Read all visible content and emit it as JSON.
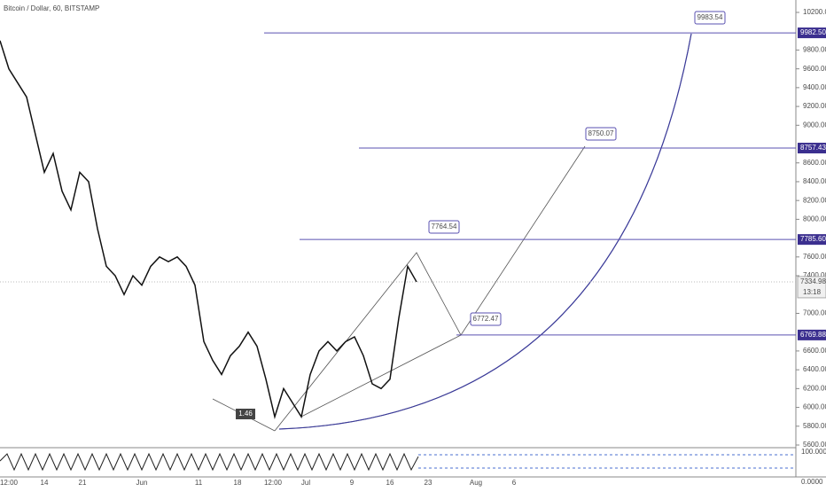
{
  "header": {
    "title": "Bitcoin / Dollar, 60, BITSTAMP"
  },
  "price_axis": {
    "ylim": [
      5600,
      10200
    ],
    "ticks": [
      {
        "value": 10200,
        "label": "10200.00"
      },
      {
        "value": 9800,
        "label": "9800.00"
      },
      {
        "value": 9600,
        "label": "9600.00"
      },
      {
        "value": 9400,
        "label": "9400.00"
      },
      {
        "value": 9200,
        "label": "9200.00"
      },
      {
        "value": 9000,
        "label": "9000.00"
      },
      {
        "value": 8600,
        "label": "8600.00"
      },
      {
        "value": 8400,
        "label": "8400.00"
      },
      {
        "value": 8200,
        "label": "8200.00"
      },
      {
        "value": 8000,
        "label": "8000.00"
      },
      {
        "value": 7600,
        "label": "7600.00"
      },
      {
        "value": 7400,
        "label": "7400.00"
      },
      {
        "value": 7000,
        "label": "7000.00"
      },
      {
        "value": 6600,
        "label": "6600.00"
      },
      {
        "value": 6400,
        "label": "6400.00"
      },
      {
        "value": 6200,
        "label": "6200.00"
      },
      {
        "value": 6000,
        "label": "6000.00"
      },
      {
        "value": 5800,
        "label": "5800.00"
      },
      {
        "value": 5600,
        "label": "5600.00"
      }
    ]
  },
  "levels": [
    {
      "value": 9982.5,
      "label": "9982.50"
    },
    {
      "value": 8757.43,
      "label": "8757.43"
    },
    {
      "value": 7785.6,
      "label": "7785.60"
    },
    {
      "value": 6769.88,
      "label": "6769.88"
    }
  ],
  "current": {
    "value": 7334.98,
    "label": "7334.98",
    "timer": "13:18"
  },
  "callouts": [
    "9983.54",
    "8750.07",
    "7764.54",
    "6772.47"
  ],
  "badge": "1.46",
  "oscillator_axis": [
    "100.0000",
    "0.0000"
  ],
  "time_axis": [
    "12:00",
    "14",
    "21",
    "Jun",
    "11",
    "18",
    "12:00",
    "Jul",
    "9",
    "16",
    "23",
    "Aug",
    "6"
  ],
  "price_path": [
    9900,
    9600,
    9450,
    9300,
    8900,
    8500,
    8700,
    8300,
    8100,
    8500,
    8400,
    7900,
    7500,
    7400,
    7200,
    7400,
    7300,
    7500,
    7600,
    7550,
    7600,
    7500,
    7300,
    6700,
    6500,
    6350,
    6550,
    6650,
    6800,
    6650,
    6300,
    5900,
    6200,
    6050,
    5900,
    6350,
    6600,
    6700,
    6600,
    6700,
    6750,
    6550,
    6250,
    6200,
    6300,
    6950,
    7500,
    7335
  ]
}
